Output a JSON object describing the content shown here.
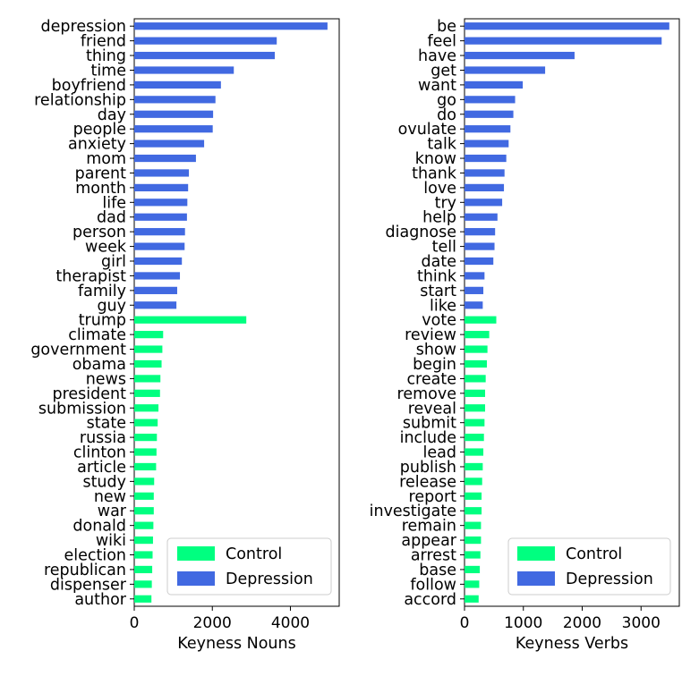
{
  "colors": {
    "control": "#00ff80",
    "depression": "#4169e1"
  },
  "chart_data": [
    {
      "type": "bar",
      "orientation": "horizontal",
      "xlabel": "Keyness Nouns",
      "xlim": [
        0,
        5250
      ],
      "xticks": [
        0,
        2000,
        4000
      ],
      "legend": {
        "placement": "bottom-right",
        "entries": [
          "Control",
          "Depression"
        ]
      },
      "grid": false,
      "categories": [
        "depression",
        "friend",
        "thing",
        "time",
        "boyfriend",
        "relationship",
        "day",
        "people",
        "anxiety",
        "mom",
        "parent",
        "month",
        "life",
        "dad",
        "person",
        "week",
        "girl",
        "therapist",
        "family",
        "guy",
        "trump",
        "climate",
        "government",
        "obama",
        "news",
        "president",
        "submission",
        "state",
        "russia",
        "clinton",
        "article",
        "study",
        "new",
        "war",
        "donald",
        "wiki",
        "election",
        "republican",
        "dispenser",
        "author"
      ],
      "values": [
        4950,
        3650,
        3600,
        2550,
        2220,
        2080,
        2020,
        2010,
        1790,
        1580,
        1400,
        1380,
        1360,
        1350,
        1300,
        1290,
        1220,
        1170,
        1100,
        1080,
        2870,
        740,
        720,
        700,
        670,
        660,
        620,
        600,
        580,
        570,
        560,
        510,
        500,
        500,
        490,
        480,
        470,
        460,
        450,
        440
      ],
      "groups": [
        "Depression",
        "Depression",
        "Depression",
        "Depression",
        "Depression",
        "Depression",
        "Depression",
        "Depression",
        "Depression",
        "Depression",
        "Depression",
        "Depression",
        "Depression",
        "Depression",
        "Depression",
        "Depression",
        "Depression",
        "Depression",
        "Depression",
        "Depression",
        "Control",
        "Control",
        "Control",
        "Control",
        "Control",
        "Control",
        "Control",
        "Control",
        "Control",
        "Control",
        "Control",
        "Control",
        "Control",
        "Control",
        "Control",
        "Control",
        "Control",
        "Control",
        "Control",
        "Control"
      ]
    },
    {
      "type": "bar",
      "orientation": "horizontal",
      "xlabel": "Keyness Verbs",
      "xlim": [
        0,
        3650
      ],
      "xticks": [
        0,
        1000,
        2000,
        3000
      ],
      "legend": {
        "placement": "bottom-right",
        "entries": [
          "Control",
          "Depression"
        ]
      },
      "grid": false,
      "categories": [
        "be",
        "feel",
        "have",
        "get",
        "want",
        "go",
        "do",
        "ovulate",
        "talk",
        "know",
        "thank",
        "love",
        "try",
        "help",
        "diagnose",
        "tell",
        "date",
        "think",
        "start",
        "like",
        "vote",
        "review",
        "show",
        "begin",
        "create",
        "remove",
        "reveal",
        "submit",
        "include",
        "lead",
        "publish",
        "release",
        "report",
        "investigate",
        "remain",
        "appear",
        "arrest",
        "base",
        "follow",
        "accord"
      ],
      "values": [
        3480,
        3350,
        1870,
        1370,
        990,
        860,
        830,
        780,
        750,
        710,
        680,
        670,
        640,
        560,
        520,
        510,
        490,
        340,
        320,
        310,
        540,
        420,
        390,
        380,
        360,
        350,
        350,
        340,
        330,
        320,
        310,
        300,
        290,
        290,
        280,
        280,
        270,
        260,
        250,
        240
      ],
      "groups": [
        "Depression",
        "Depression",
        "Depression",
        "Depression",
        "Depression",
        "Depression",
        "Depression",
        "Depression",
        "Depression",
        "Depression",
        "Depression",
        "Depression",
        "Depression",
        "Depression",
        "Depression",
        "Depression",
        "Depression",
        "Depression",
        "Depression",
        "Depression",
        "Control",
        "Control",
        "Control",
        "Control",
        "Control",
        "Control",
        "Control",
        "Control",
        "Control",
        "Control",
        "Control",
        "Control",
        "Control",
        "Control",
        "Control",
        "Control",
        "Control",
        "Control",
        "Control",
        "Control"
      ]
    }
  ]
}
